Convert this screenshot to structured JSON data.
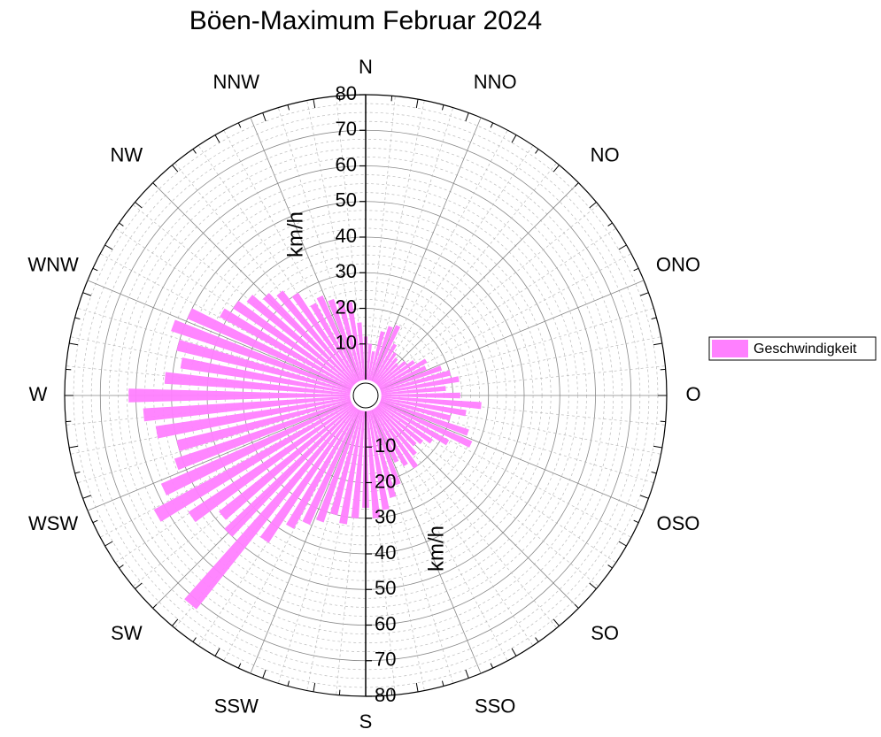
{
  "chart_data": {
    "type": "polar-bar",
    "title": "Böen-Maximum Februar 2024",
    "axis_label": "km/h",
    "direction_labels": [
      "N",
      "NNO",
      "NO",
      "ONO",
      "O",
      "OSO",
      "SO",
      "SSO",
      "S",
      "SSW",
      "SW",
      "WSW",
      "W",
      "WNW",
      "NW",
      "NNW"
    ],
    "series": [
      {
        "name": "Geschwindigkeit",
        "color": "#ff80ff",
        "x": [
          0,
          5,
          10,
          15,
          20,
          25,
          30,
          35,
          40,
          45,
          50,
          55,
          60,
          65,
          70,
          75,
          80,
          85,
          90,
          95,
          100,
          105,
          110,
          115,
          120,
          125,
          130,
          135,
          140,
          145,
          150,
          155,
          160,
          165,
          170,
          175,
          180,
          185,
          190,
          195,
          200,
          205,
          210,
          215,
          220,
          225,
          230,
          235,
          240,
          245,
          250,
          255,
          260,
          265,
          270,
          275,
          280,
          285,
          290,
          295,
          300,
          305,
          310,
          315,
          320,
          325,
          330,
          335,
          340,
          345,
          350,
          355
        ],
        "values": [
          12,
          10,
          8,
          14,
          16,
          17,
          12,
          10,
          9,
          8,
          10,
          12,
          15,
          14,
          18,
          20,
          22,
          18,
          22,
          28,
          24,
          20,
          26,
          28,
          22,
          18,
          16,
          15,
          17,
          20,
          18,
          16,
          22,
          25,
          28,
          30,
          27,
          30,
          32,
          30,
          33,
          35,
          38,
          45,
          72,
          50,
          48,
          55,
          63,
          58,
          52,
          50,
          55,
          58,
          62,
          52,
          48,
          50,
          53,
          50,
          42,
          40,
          38,
          35,
          33,
          30,
          25,
          26,
          24,
          23,
          22,
          16
        ]
      }
    ],
    "ylim": [
      0,
      80
    ],
    "yticks": [
      10,
      20,
      30,
      40,
      50,
      60,
      70,
      80
    ],
    "grid": true,
    "legend": "right"
  }
}
